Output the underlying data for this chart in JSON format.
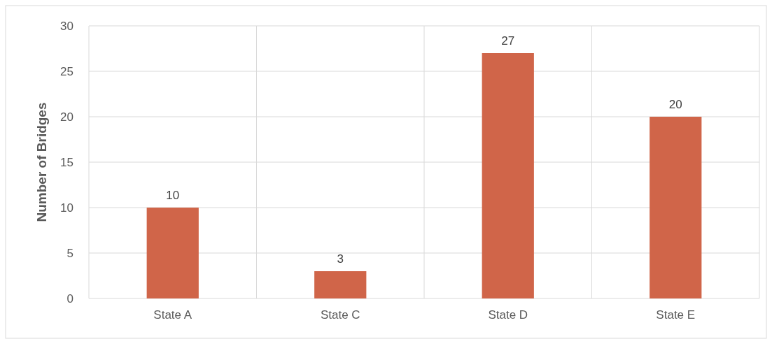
{
  "chart_data": {
    "type": "bar",
    "ylabel": "Number of Bridges",
    "categories": [
      "State A",
      "State C",
      "State D",
      "State E"
    ],
    "values": [
      10,
      3,
      27,
      20
    ],
    "color": "#d06549",
    "ylim": [
      0,
      30
    ],
    "yticks": [
      0,
      5,
      10,
      15,
      20,
      25,
      30
    ],
    "grid": true,
    "data_labels": true
  }
}
